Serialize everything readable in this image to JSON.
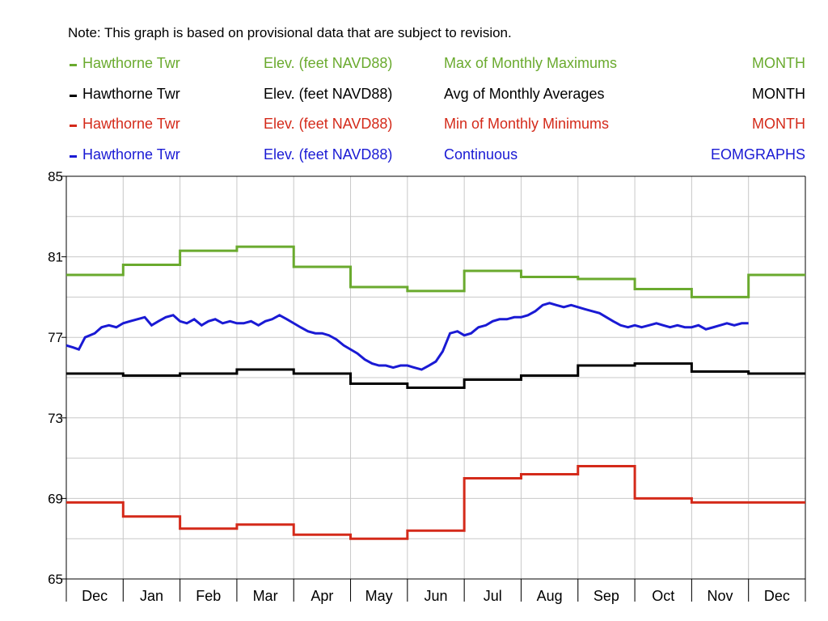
{
  "note": "Note: This graph is based on provisional data that are subject to revision.",
  "legend": [
    {
      "site": "Hawthorne Twr",
      "parameter": "Elev. (feet NAVD88)",
      "statistic": "Max of Monthly Maximums",
      "interval": "MONTH",
      "color": "#6aaa2e"
    },
    {
      "site": "Hawthorne Twr",
      "parameter": "Elev. (feet NAVD88)",
      "statistic": "Avg of Monthly Averages",
      "interval": "MONTH",
      "color": "#000000"
    },
    {
      "site": "Hawthorne Twr",
      "parameter": "Elev. (feet NAVD88)",
      "statistic": "Min of Monthly Minimums",
      "interval": "MONTH",
      "color": "#d42a1a"
    },
    {
      "site": "Hawthorne Twr",
      "parameter": "Elev. (feet NAVD88)",
      "statistic": "Continuous",
      "interval": "EOMGRAPHS",
      "color": "#1a1ad4"
    }
  ],
  "chart_data": {
    "type": "line",
    "title": "",
    "xlabel": "",
    "ylabel": "",
    "ylim": [
      65,
      85
    ],
    "yticks": [
      65,
      69,
      73,
      77,
      81,
      85
    ],
    "grid": true,
    "categories": [
      "Dec",
      "Jan",
      "Feb",
      "Mar",
      "Apr",
      "May",
      "Jun",
      "Jul",
      "Aug",
      "Sep",
      "Oct",
      "Nov",
      "Dec"
    ],
    "series": [
      {
        "name": "Max of Monthly Maximums",
        "step": true,
        "color": "#6aaa2e",
        "values": [
          80.1,
          80.6,
          81.3,
          81.5,
          80.5,
          79.5,
          79.3,
          80.3,
          80.0,
          79.9,
          79.4,
          79.0,
          80.1
        ]
      },
      {
        "name": "Avg of Monthly Averages",
        "step": true,
        "color": "#000000",
        "values": [
          75.2,
          75.1,
          75.2,
          75.4,
          75.2,
          74.7,
          74.5,
          74.9,
          75.1,
          75.6,
          75.7,
          75.3,
          75.2
        ]
      },
      {
        "name": "Min of Monthly Minimums",
        "step": true,
        "color": "#d42a1a",
        "values": [
          68.8,
          68.1,
          67.5,
          67.7,
          67.2,
          67.0,
          67.4,
          70.0,
          70.2,
          70.6,
          69.0,
          68.8,
          68.8
        ]
      },
      {
        "name": "Continuous",
        "step": false,
        "color": "#1a1ad4",
        "x": [
          0.0,
          0.12,
          0.22,
          0.33,
          0.5,
          0.62,
          0.75,
          0.88,
          1.0,
          1.12,
          1.25,
          1.38,
          1.5,
          1.62,
          1.75,
          1.88,
          2.0,
          2.12,
          2.25,
          2.38,
          2.5,
          2.62,
          2.75,
          2.88,
          3.0,
          3.12,
          3.25,
          3.38,
          3.5,
          3.62,
          3.75,
          3.88,
          4.0,
          4.12,
          4.25,
          4.38,
          4.5,
          4.62,
          4.75,
          4.88,
          5.0,
          5.12,
          5.25,
          5.38,
          5.5,
          5.62,
          5.75,
          5.88,
          6.0,
          6.12,
          6.25,
          6.38,
          6.5,
          6.62,
          6.75,
          6.88,
          7.0,
          7.12,
          7.25,
          7.38,
          7.5,
          7.62,
          7.75,
          7.88,
          8.0,
          8.12,
          8.25,
          8.38,
          8.5,
          8.62,
          8.75,
          8.88,
          9.0,
          9.12,
          9.25,
          9.38,
          9.5,
          9.62,
          9.75,
          9.88,
          10.0,
          10.12,
          10.25,
          10.38,
          10.5,
          10.62,
          10.75,
          10.88,
          11.0,
          11.12,
          11.25,
          11.38,
          11.5,
          11.62,
          11.75,
          11.88,
          12.0
        ],
        "values": [
          76.6,
          76.5,
          76.4,
          77.0,
          77.2,
          77.5,
          77.6,
          77.5,
          77.7,
          77.8,
          77.9,
          78.0,
          77.6,
          77.8,
          78.0,
          78.1,
          77.8,
          77.7,
          77.9,
          77.6,
          77.8,
          77.9,
          77.7,
          77.8,
          77.7,
          77.7,
          77.8,
          77.6,
          77.8,
          77.9,
          78.1,
          77.9,
          77.7,
          77.5,
          77.3,
          77.2,
          77.2,
          77.1,
          76.9,
          76.6,
          76.4,
          76.2,
          75.9,
          75.7,
          75.6,
          75.6,
          75.5,
          75.6,
          75.6,
          75.5,
          75.4,
          75.6,
          75.8,
          76.3,
          77.2,
          77.3,
          77.1,
          77.2,
          77.5,
          77.6,
          77.8,
          77.9,
          77.9,
          78.0,
          78.0,
          78.1,
          78.3,
          78.6,
          78.7,
          78.6,
          78.5,
          78.6,
          78.5,
          78.4,
          78.3,
          78.2,
          78.0,
          77.8,
          77.6,
          77.5,
          77.6,
          77.5,
          77.6,
          77.7,
          77.6,
          77.5,
          77.6,
          77.5,
          77.5,
          77.6,
          77.4,
          77.5,
          77.6,
          77.7,
          77.6,
          77.7,
          77.7
        ]
      }
    ]
  }
}
